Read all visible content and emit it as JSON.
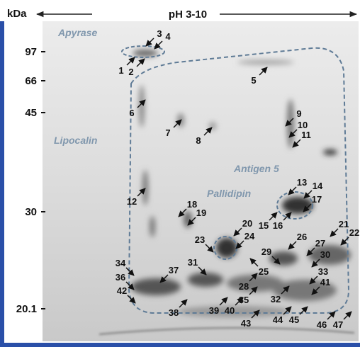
{
  "header": {
    "unit": "kDa",
    "ph_range": "pH 3-10"
  },
  "markers": [
    "97",
    "66",
    "45",
    "30",
    "20.1"
  ],
  "regions": [
    "Apyrase",
    "Lipocalin",
    "Antigen 5",
    "Pallidipin"
  ],
  "spots": [
    "1",
    "2",
    "3",
    "4",
    "5",
    "6",
    "7",
    "8",
    "9",
    "10",
    "11",
    "12",
    "13",
    "14",
    "15",
    "16",
    "17",
    "18",
    "19",
    "20",
    "21",
    "22",
    "23",
    "24",
    "25",
    "26",
    "27",
    "28",
    "29",
    "30",
    "31",
    "32",
    "33",
    "34",
    "35",
    "36",
    "37",
    "38",
    "39",
    "40",
    "41",
    "42",
    "43",
    "44",
    "45",
    "46",
    "47"
  ]
}
